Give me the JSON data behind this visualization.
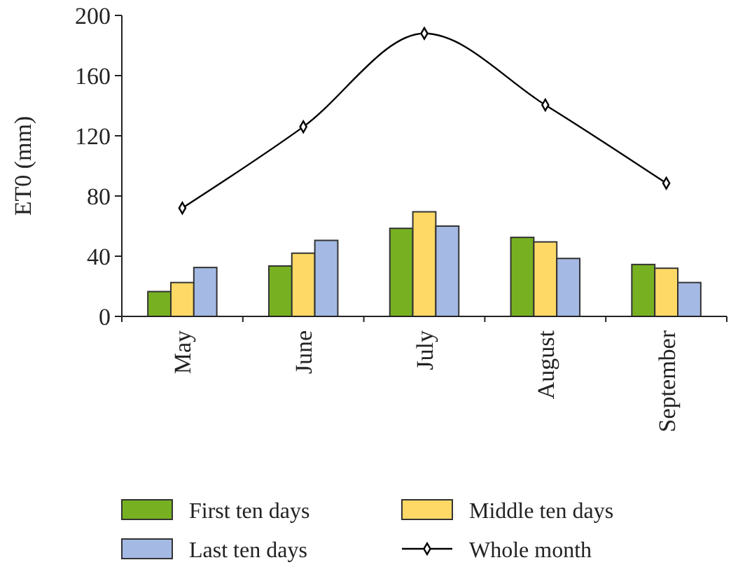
{
  "chart_data": {
    "type": "bar",
    "ylabel": "ET0 (mm)",
    "categories": [
      "May",
      "June",
      "July",
      "August",
      "September"
    ],
    "series": [
      {
        "name": "First ten days",
        "color": "#77b122",
        "values": [
          16.5,
          33.5,
          58.5,
          52.5,
          34.5
        ]
      },
      {
        "name": "Middle ten days",
        "color": "#ffd966",
        "values": [
          22.5,
          42,
          69.5,
          49.5,
          32
        ]
      },
      {
        "name": "Last ten days",
        "color": "#a4b9e3",
        "values": [
          32.5,
          50.5,
          60,
          38.5,
          22.5
        ]
      },
      {
        "name": "Whole month",
        "type": "line",
        "color": "#000000",
        "marker": "diamond",
        "values": [
          72,
          126,
          188,
          140.5,
          88.5
        ]
      }
    ],
    "ylim": [
      0,
      200
    ],
    "yticks": [
      0,
      40,
      80,
      120,
      160,
      200
    ],
    "grid": false,
    "legend": "bottom"
  }
}
